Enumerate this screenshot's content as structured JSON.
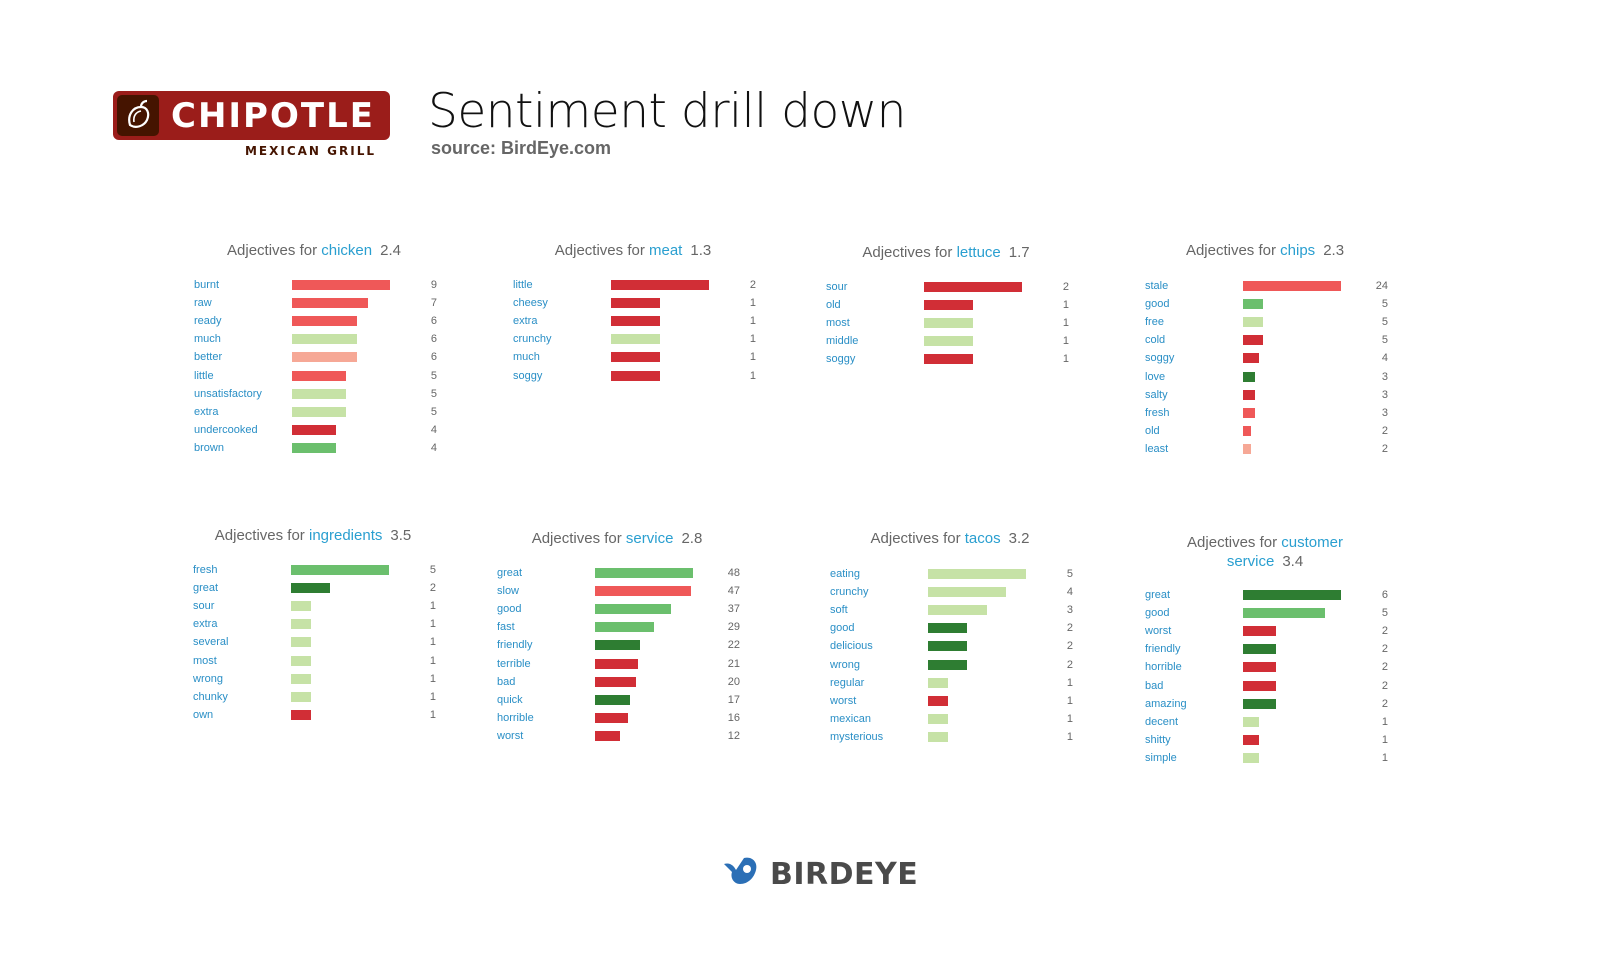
{
  "header": {
    "logo_word": "CHIPOTLE",
    "logo_sub": "MEXICAN GRILL",
    "title": "Sentiment drill down",
    "source": "source: BirdEye.com"
  },
  "footer": {
    "brand": "BIRDEYE"
  },
  "colors": {
    "neg_dark": "#d12e36",
    "neg": "#ef5858",
    "neg_light": "#f6a896",
    "neutral": "#c6e2a6",
    "pos": "#6bbf6d",
    "pos_dark": "#2e7d32"
  },
  "chart_data": [
    {
      "type": "bar",
      "prefix": "Adjectives for",
      "keyword": "chicken",
      "score": "2.4",
      "categories": [
        "burnt",
        "raw",
        "ready",
        "much",
        "better",
        "little",
        "unsatisfactory",
        "extra",
        "undercooked",
        "brown"
      ],
      "values": [
        9,
        7,
        6,
        6,
        6,
        5,
        5,
        5,
        4,
        4
      ],
      "sentiments": [
        "neg",
        "neg",
        "neg",
        "neutral",
        "neg_light",
        "neg",
        "neutral",
        "neutral",
        "neg_dark",
        "pos"
      ]
    },
    {
      "type": "bar",
      "prefix": "Adjectives for",
      "keyword": "meat",
      "score": "1.3",
      "categories": [
        "little",
        "cheesy",
        "extra",
        "crunchy",
        "much",
        "soggy"
      ],
      "values": [
        2,
        1,
        1,
        1,
        1,
        1
      ],
      "sentiments": [
        "neg_dark",
        "neg_dark",
        "neg_dark",
        "neutral",
        "neg_dark",
        "neg_dark"
      ]
    },
    {
      "type": "bar",
      "prefix": "Adjectives for",
      "keyword": "lettuce",
      "score": "1.7",
      "categories": [
        "sour",
        "old",
        "most",
        "middle",
        "soggy"
      ],
      "values": [
        2,
        1,
        1,
        1,
        1
      ],
      "sentiments": [
        "neg_dark",
        "neg_dark",
        "neutral",
        "neutral",
        "neg_dark"
      ]
    },
    {
      "type": "bar",
      "prefix": "Adjectives for",
      "keyword": "chips",
      "score": "2.3",
      "categories": [
        "stale",
        "good",
        "free",
        "cold",
        "soggy",
        "love",
        "salty",
        "fresh",
        "old",
        "least"
      ],
      "values": [
        24,
        5,
        5,
        5,
        4,
        3,
        3,
        3,
        2,
        2
      ],
      "sentiments": [
        "neg",
        "pos",
        "neutral",
        "neg_dark",
        "neg_dark",
        "pos_dark",
        "neg_dark",
        "neg",
        "neg",
        "neg_light"
      ]
    },
    {
      "type": "bar",
      "prefix": "Adjectives for",
      "keyword": "ingredients",
      "score": "3.5",
      "categories": [
        "fresh",
        "great",
        "sour",
        "extra",
        "several",
        "most",
        "wrong",
        "chunky",
        "own"
      ],
      "values": [
        5,
        2,
        1,
        1,
        1,
        1,
        1,
        1,
        1
      ],
      "sentiments": [
        "pos",
        "pos_dark",
        "neutral",
        "neutral",
        "neutral",
        "neutral",
        "neutral",
        "neutral",
        "neg_dark"
      ]
    },
    {
      "type": "bar",
      "prefix": "Adjectives for",
      "keyword": "service",
      "score": "2.8",
      "categories": [
        "great",
        "slow",
        "good",
        "fast",
        "friendly",
        "terrible",
        "bad",
        "quick",
        "horrible",
        "worst"
      ],
      "values": [
        48,
        47,
        37,
        29,
        22,
        21,
        20,
        17,
        16,
        12
      ],
      "sentiments": [
        "pos",
        "neg",
        "pos",
        "pos",
        "pos_dark",
        "neg_dark",
        "neg_dark",
        "pos_dark",
        "neg_dark",
        "neg_dark"
      ]
    },
    {
      "type": "bar",
      "prefix": "Adjectives for",
      "keyword": "tacos",
      "score": "3.2",
      "categories": [
        "eating",
        "crunchy",
        "soft",
        "good",
        "delicious",
        "wrong",
        "regular",
        "worst",
        "mexican",
        "mysterious"
      ],
      "values": [
        5,
        4,
        3,
        2,
        2,
        2,
        1,
        1,
        1,
        1
      ],
      "sentiments": [
        "neutral",
        "neutral",
        "neutral",
        "pos_dark",
        "pos_dark",
        "pos_dark",
        "neutral",
        "neg_dark",
        "neutral",
        "neutral"
      ]
    },
    {
      "type": "bar",
      "prefix": "Adjectives for",
      "keyword": "customer service",
      "score": "3.4",
      "categories": [
        "great",
        "good",
        "worst",
        "friendly",
        "horrible",
        "bad",
        "amazing",
        "decent",
        "shitty",
        "simple"
      ],
      "values": [
        6,
        5,
        2,
        2,
        2,
        2,
        2,
        1,
        1,
        1
      ],
      "sentiments": [
        "pos_dark",
        "pos",
        "neg_dark",
        "pos_dark",
        "neg_dark",
        "neg_dark",
        "pos_dark",
        "neutral",
        "neg_dark",
        "neutral"
      ]
    }
  ]
}
